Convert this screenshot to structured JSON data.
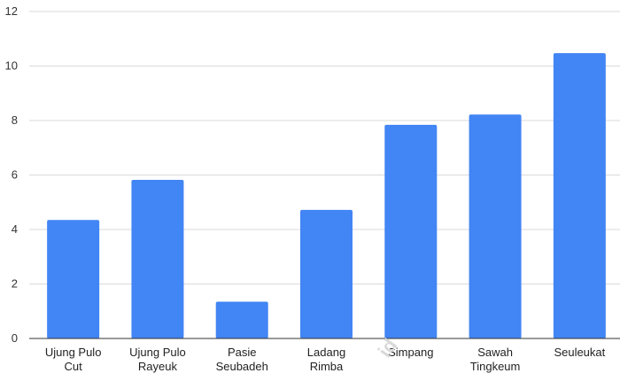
{
  "chart_data": {
    "type": "bar",
    "categories": [
      [
        "Ujung Pulo",
        "Cut"
      ],
      [
        "Ujung Pulo",
        "Rayeuk"
      ],
      [
        "Pasie",
        "Seubadeh"
      ],
      [
        "Ladang",
        "Rimba"
      ],
      [
        "Simpang"
      ],
      [
        "Sawah",
        "Tingkeum"
      ],
      [
        "Seuleukat"
      ]
    ],
    "values": [
      4.35,
      5.82,
      1.35,
      4.72,
      7.84,
      8.22,
      10.47
    ],
    "ylim": [
      0,
      12
    ],
    "yticks": [
      0,
      2,
      4,
      6,
      8,
      10,
      12
    ],
    "grid": true,
    "legend": "none",
    "colors": {
      "bar": "#4285F4",
      "grid": "#d9d9d9",
      "axis": "#333333"
    }
  },
  "watermark": "id"
}
